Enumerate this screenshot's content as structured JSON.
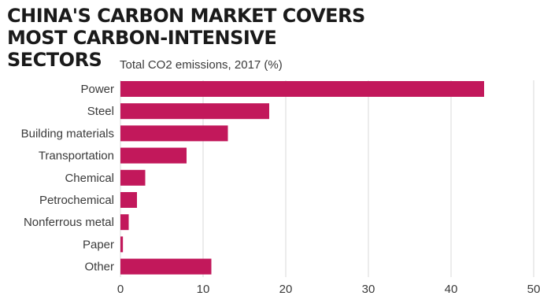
{
  "header": {
    "title": "China's carbon market covers most carbon-intensive sectors"
  },
  "chart_data": {
    "type": "bar",
    "orientation": "horizontal",
    "subtitle": "Total CO2 emissions, 2017 (%)",
    "categories": [
      "Power",
      "Steel",
      "Building materials",
      "Transportation",
      "Chemical",
      "Petrochemical",
      "Nonferrous metal",
      "Paper",
      "Other"
    ],
    "values": [
      44,
      18,
      13,
      8,
      3,
      2,
      1,
      0.3,
      11
    ],
    "xlim": [
      0,
      50
    ],
    "xticks": [
      0,
      10,
      20,
      30,
      40,
      50
    ],
    "grid": true,
    "bar_color": "#c2185b",
    "grid_color": "#d9d9d9"
  }
}
